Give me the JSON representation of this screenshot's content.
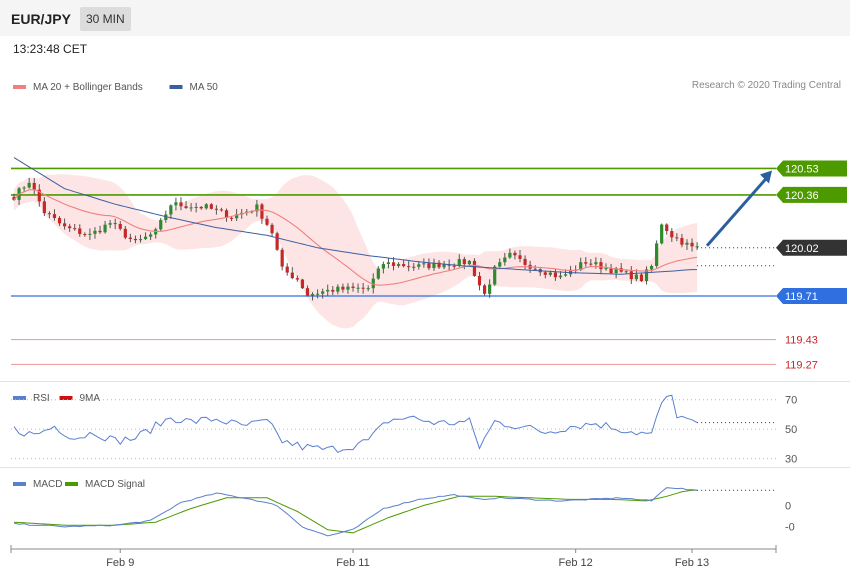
{
  "header": {
    "symbol": "EUR/JPY",
    "timeframe": "30 MIN"
  },
  "timestamp": "13:23:48 CET",
  "credit": "Research © 2020 Trading Central",
  "colors": {
    "up": "#2d8a2d",
    "down": "#c62828",
    "resistance": "#4c9a00",
    "support": "#2f6fe0",
    "lower_lines": "#f0a0a0",
    "current": "#333333",
    "ma20": "#f08080",
    "ma50": "#3a5fa0",
    "bollinger": "#fde0e0",
    "rsi": "#5b7fcf",
    "rsi_ma": "#d01010",
    "macd": "#5b7fcf",
    "macd_signal": "#4c9a00",
    "arrow": "#2c5f9e"
  },
  "chart_data": [
    {
      "type": "candlestick",
      "legend": [
        {
          "name": "MA 20 + Bollinger Bands",
          "color": "#f08080"
        },
        {
          "name": "MA 50",
          "color": "#3a5fa0"
        }
      ],
      "ylim": [
        119.17,
        120.97
      ],
      "x_ticks": [
        {
          "label": "Feb 9",
          "index": 21
        },
        {
          "label": "Feb 11",
          "index": 67
        },
        {
          "label": "Feb 12",
          "index": 111
        },
        {
          "label": "Feb 13",
          "index": 134
        }
      ],
      "levels": [
        {
          "label": "120.53",
          "value": 120.53,
          "kind": "resistance"
        },
        {
          "label": "120.36",
          "value": 120.36,
          "kind": "resistance"
        },
        {
          "label": "120.02",
          "value": 120.02,
          "kind": "current"
        },
        {
          "label": "119.71",
          "value": 119.71,
          "kind": "support"
        },
        {
          "label": "119.43",
          "value": 119.43,
          "kind": "lower"
        },
        {
          "label": "119.27",
          "value": 119.27,
          "kind": "lower"
        }
      ],
      "keypoints": [
        [
          0,
          120.35
        ],
        [
          3,
          120.45
        ],
        [
          6,
          120.25
        ],
        [
          10,
          120.15
        ],
        [
          15,
          120.1
        ],
        [
          19,
          120.18
        ],
        [
          24,
          120.05
        ],
        [
          28,
          120.12
        ],
        [
          31,
          120.3
        ],
        [
          38,
          120.28
        ],
        [
          43,
          120.22
        ],
        [
          48,
          120.28
        ],
        [
          51,
          120.12
        ],
        [
          53,
          119.88
        ],
        [
          56,
          119.82
        ],
        [
          58,
          119.72
        ],
        [
          63,
          119.75
        ],
        [
          70,
          119.76
        ],
        [
          73,
          119.92
        ],
        [
          80,
          119.9
        ],
        [
          86,
          119.92
        ],
        [
          90,
          119.93
        ],
        [
          92,
          119.78
        ],
        [
          93,
          119.72
        ],
        [
          95,
          119.88
        ],
        [
          98,
          119.97
        ],
        [
          101,
          119.92
        ],
        [
          108,
          119.83
        ],
        [
          113,
          119.93
        ],
        [
          118,
          119.88
        ],
        [
          124,
          119.82
        ],
        [
          126,
          119.9
        ],
        [
          128,
          120.18
        ],
        [
          130,
          120.1
        ],
        [
          134,
          120.02
        ]
      ],
      "ma50_keypoints": [
        [
          0,
          120.6
        ],
        [
          10,
          120.4
        ],
        [
          20,
          120.3
        ],
        [
          30,
          120.22
        ],
        [
          40,
          120.15
        ],
        [
          50,
          120.1
        ],
        [
          60,
          120.02
        ],
        [
          70,
          119.97
        ],
        [
          80,
          119.93
        ],
        [
          90,
          119.9
        ],
        [
          100,
          119.88
        ],
        [
          110,
          119.86
        ],
        [
          120,
          119.85
        ],
        [
          130,
          119.87
        ],
        [
          134,
          119.88
        ]
      ]
    },
    {
      "type": "line",
      "legend": [
        {
          "name": "RSI",
          "color": "#5b7fcf"
        },
        {
          "name": "9MA",
          "color": "#d01010"
        }
      ],
      "ylim": [
        25,
        80
      ],
      "y_ticks": [
        70,
        50,
        30
      ],
      "keypoints": [
        [
          0,
          50
        ],
        [
          4,
          46
        ],
        [
          8,
          52
        ],
        [
          12,
          44
        ],
        [
          16,
          48
        ],
        [
          20,
          42
        ],
        [
          24,
          44
        ],
        [
          28,
          52
        ],
        [
          31,
          58
        ],
        [
          35,
          55
        ],
        [
          40,
          57
        ],
        [
          45,
          52
        ],
        [
          50,
          55
        ],
        [
          53,
          42
        ],
        [
          57,
          38
        ],
        [
          62,
          36
        ],
        [
          66,
          38
        ],
        [
          70,
          42
        ],
        [
          74,
          56
        ],
        [
          78,
          58
        ],
        [
          84,
          54
        ],
        [
          90,
          55
        ],
        [
          92,
          38
        ],
        [
          95,
          55
        ],
        [
          100,
          52
        ],
        [
          105,
          48
        ],
        [
          110,
          52
        ],
        [
          115,
          54
        ],
        [
          120,
          50
        ],
        [
          126,
          46
        ],
        [
          128,
          68
        ],
        [
          130,
          72
        ],
        [
          131,
          60
        ],
        [
          134,
          54
        ]
      ]
    },
    {
      "type": "line",
      "legend": [
        {
          "name": "MACD",
          "color": "#5b7fcf"
        },
        {
          "name": "MACD Signal",
          "color": "#4c9a00"
        }
      ],
      "ylim": [
        -0.14,
        0.11
      ],
      "y_ticks": [
        0,
        0
      ],
      "y_tick_labels": [
        "0",
        "-0"
      ],
      "macd_keypoints": [
        [
          0,
          -0.06
        ],
        [
          10,
          -0.07
        ],
        [
          20,
          -0.065
        ],
        [
          27,
          -0.05
        ],
        [
          33,
          0.01
        ],
        [
          40,
          0.04
        ],
        [
          47,
          0.02
        ],
        [
          52,
          0.0
        ],
        [
          57,
          -0.07
        ],
        [
          62,
          -0.1
        ],
        [
          67,
          -0.08
        ],
        [
          73,
          -0.01
        ],
        [
          80,
          0.02
        ],
        [
          87,
          0.035
        ],
        [
          92,
          0.02
        ],
        [
          96,
          0.025
        ],
        [
          102,
          0.02
        ],
        [
          108,
          0.015
        ],
        [
          114,
          0.02
        ],
        [
          120,
          0.025
        ],
        [
          126,
          0.015
        ],
        [
          129,
          0.06
        ],
        [
          132,
          0.055
        ],
        [
          134,
          0.05
        ]
      ],
      "signal_keypoints": [
        [
          0,
          -0.055
        ],
        [
          10,
          -0.065
        ],
        [
          20,
          -0.065
        ],
        [
          28,
          -0.055
        ],
        [
          35,
          -0.01
        ],
        [
          42,
          0.025
        ],
        [
          50,
          0.025
        ],
        [
          56,
          -0.02
        ],
        [
          62,
          -0.08
        ],
        [
          67,
          -0.09
        ],
        [
          74,
          -0.04
        ],
        [
          81,
          0.0
        ],
        [
          88,
          0.03
        ],
        [
          95,
          0.03
        ],
        [
          102,
          0.025
        ],
        [
          110,
          0.02
        ],
        [
          118,
          0.02
        ],
        [
          125,
          0.015
        ],
        [
          129,
          0.03
        ],
        [
          132,
          0.045
        ],
        [
          134,
          0.05
        ]
      ]
    }
  ]
}
